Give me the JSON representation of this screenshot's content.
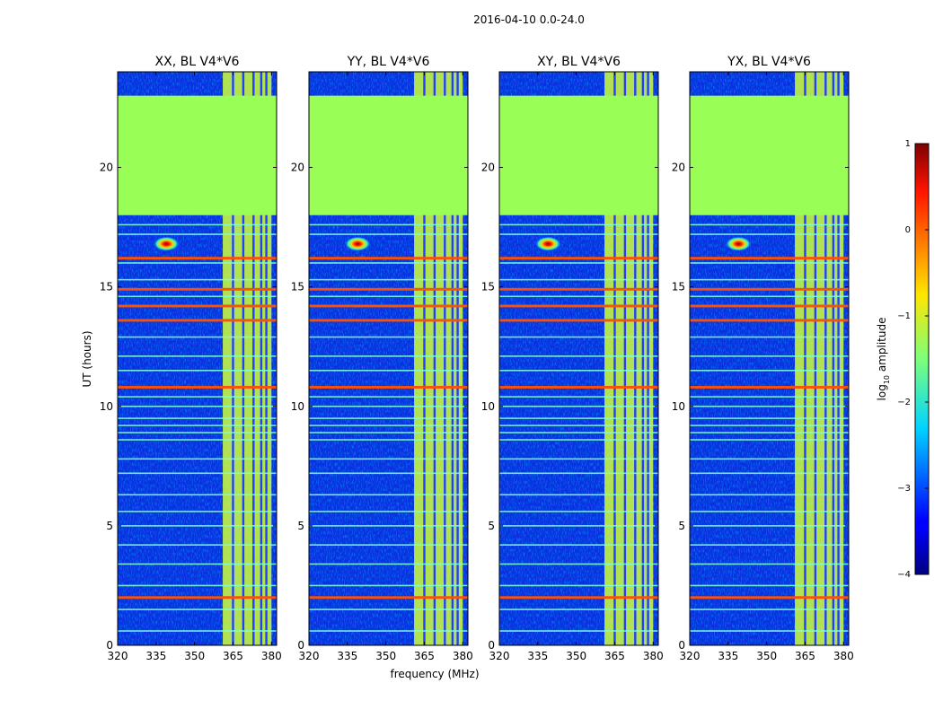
{
  "figure": {
    "suptitle": "2016-04-10 0.0-24.0",
    "xlabel": "frequency (MHz)",
    "ylabel": "UT (hours)",
    "colorbar_label_prefix": "log",
    "colorbar_label_sub": "10",
    "colorbar_label_suffix": " amplitude"
  },
  "chart_data": {
    "type": "heatmap",
    "title": "2016-04-10 0.0-24.0",
    "xlabel": "frequency (MHz)",
    "ylabel": "UT (hours)",
    "xlim": [
      320,
      382
    ],
    "ylim": [
      0,
      24
    ],
    "xticks": [
      320,
      335,
      350,
      365,
      380
    ],
    "yticks": [
      0,
      5,
      10,
      15,
      20
    ],
    "panels": [
      {
        "title": "XX, BL V4*V6"
      },
      {
        "title": "YY, BL V4*V6"
      },
      {
        "title": "XY, BL V4*V6"
      },
      {
        "title": "YX, BL V4*V6"
      }
    ],
    "colorbar": {
      "label": "log10 amplitude",
      "range": [
        -4,
        1
      ],
      "ticks": [
        1,
        0,
        -1,
        -2,
        -3,
        -4
      ],
      "tick_labels": [
        "1",
        "0",
        "−1",
        "−2",
        "−3",
        "−4"
      ],
      "colormap": "jet"
    },
    "flagged_region": {
      "ut_range": [
        18.0,
        23.0
      ],
      "log10_value": -0.8
    },
    "rfi_channels_mhz": [
      361,
      362,
      363,
      364,
      365,
      366,
      367,
      368,
      369,
      370,
      371,
      372,
      373,
      374,
      375,
      376,
      377,
      378,
      379,
      380
    ],
    "rfi_bright_lines_mhz": [
      365,
      369,
      373,
      376,
      378
    ],
    "transient": {
      "freq_mhz": 339,
      "ut": 16.8
    },
    "rfi_time_lines_ut": [
      0.6,
      1.5,
      2.0,
      2.5,
      3.4,
      4.2,
      5.0,
      5.6,
      6.3,
      7.2,
      7.8,
      8.6,
      8.9,
      9.2,
      9.5,
      10.0,
      10.4,
      10.8,
      11.5,
      12.1,
      12.9,
      13.6,
      14.2,
      14.6,
      14.9,
      15.3,
      16.0,
      16.2,
      17.2,
      17.6
    ],
    "rfi_strong_lines_ut": [
      2.0,
      10.8,
      13.6,
      14.2,
      14.9,
      16.2
    ]
  }
}
